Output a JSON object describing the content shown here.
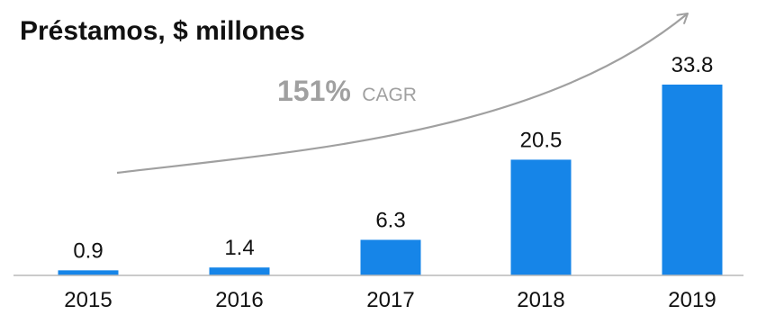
{
  "colors": {
    "bar": "#1685e8",
    "axis": "#b8b8b8",
    "arrow": "#a0a0a0",
    "text": "#111111"
  },
  "chart_data": {
    "type": "bar",
    "title": "Préstamos, $ millones",
    "xlabel": "",
    "ylabel": "",
    "categories": [
      "2015",
      "2016",
      "2017",
      "2018",
      "2019"
    ],
    "values": [
      0.9,
      1.4,
      6.3,
      20.5,
      33.8
    ],
    "value_labels": [
      "0.9",
      "1.4",
      "6.3",
      "20.5",
      "33.8"
    ],
    "ylim": [
      0,
      34
    ],
    "grid": false,
    "legend": "none",
    "annotation": {
      "value": "151%",
      "label": "CAGR"
    }
  }
}
